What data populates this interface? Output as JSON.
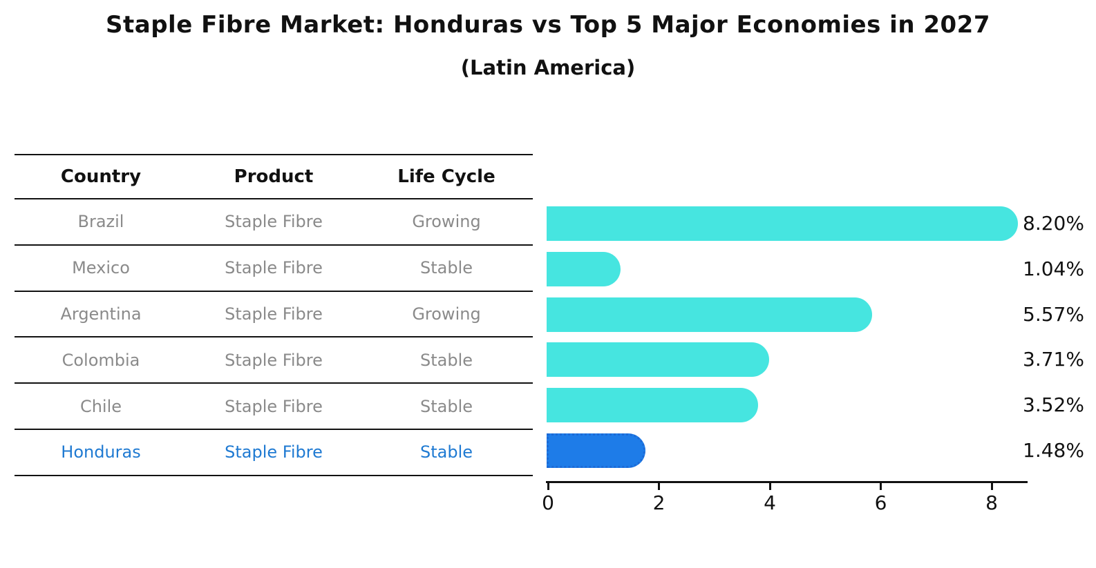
{
  "title": "Staple Fibre Market: Honduras vs Top 5 Major Economies in 2027",
  "subtitle": "(Latin America)",
  "colors": {
    "bar": "#46e5e0",
    "highlight_bar": "#1e7ce8",
    "highlight_border": "#1c6ad6",
    "highlight_text": "#1f7ad2",
    "row_text": "#8a8a8a",
    "line": "#111111"
  },
  "table": {
    "headers": [
      "Country",
      "Product",
      "Life Cycle"
    ],
    "rows": [
      {
        "country": "Brazil",
        "product": "Staple Fibre",
        "life_cycle": "Growing",
        "highlight": false
      },
      {
        "country": "Mexico",
        "product": "Staple Fibre",
        "life_cycle": "Stable",
        "highlight": false
      },
      {
        "country": "Argentina",
        "product": "Staple Fibre",
        "life_cycle": "Growing",
        "highlight": false
      },
      {
        "country": "Colombia",
        "product": "Staple Fibre",
        "life_cycle": "Stable",
        "highlight": false
      },
      {
        "country": "Chile",
        "product": "Staple Fibre",
        "life_cycle": "Stable",
        "highlight": false
      },
      {
        "country": "Honduras",
        "product": "Staple Fibre",
        "life_cycle": "Stable",
        "highlight": true
      }
    ]
  },
  "chart_data": {
    "type": "bar",
    "orientation": "horizontal",
    "title": "Staple Fibre Market: Honduras vs Top 5 Major Economies in 2027",
    "subtitle": "(Latin America)",
    "categories": [
      "Brazil",
      "Mexico",
      "Argentina",
      "Colombia",
      "Chile",
      "Honduras"
    ],
    "values": [
      8.2,
      1.04,
      5.57,
      3.71,
      3.52,
      1.48
    ],
    "value_labels": [
      "8.20%",
      "1.04%",
      "5.57%",
      "3.71%",
      "3.52%",
      "1.48%"
    ],
    "unit": "percent",
    "highlight_index": 5,
    "xlim": [
      0,
      8.65
    ],
    "xticks": [
      0,
      2,
      4,
      6,
      8
    ],
    "grid": false,
    "legend": false
  }
}
